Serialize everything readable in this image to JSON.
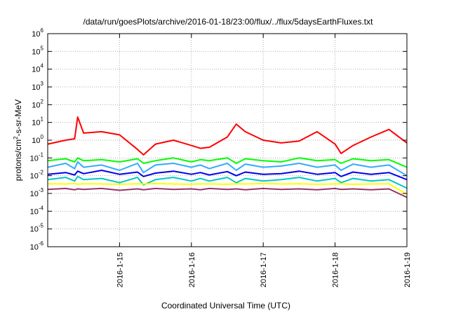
{
  "chart_data": {
    "type": "line",
    "title": "/data/run/goesPlots/archive/2016-01-18/23:00/flux/../flux/5daysEarthFluxes.txt",
    "xlabel": "Coordinated Universal Time (UTC)",
    "ylabel": {
      "prefix": "protons/cm",
      "sup": "2",
      "suffix": "-s-sr-MeV"
    },
    "yscale": "log",
    "ylim": [
      1e-06,
      1000000.0
    ],
    "xlim": [
      "2016-01-14 00:00",
      "2016-01-19 00:00"
    ],
    "y_tick_labels": [
      {
        "base": "10",
        "exp": "-6"
      },
      {
        "base": "10",
        "exp": "-5"
      },
      {
        "base": "10",
        "exp": "-4"
      },
      {
        "base": "10",
        "exp": "-3"
      },
      {
        "base": "10",
        "exp": "-2"
      },
      {
        "base": "10",
        "exp": "-1"
      },
      {
        "base": "10",
        "exp": "0"
      },
      {
        "base": "10",
        "exp": "1"
      },
      {
        "base": "10",
        "exp": "2"
      },
      {
        "base": "10",
        "exp": "3"
      },
      {
        "base": "10",
        "exp": "4"
      },
      {
        "base": "10",
        "exp": "5"
      },
      {
        "base": "10",
        "exp": "6"
      }
    ],
    "x_tick_labels": [
      "2016-1-15",
      "2016-1-16",
      "2016-1-17",
      "2016-1-18",
      "2016-1-19"
    ],
    "x_tick_dates": [
      "2016-01-15",
      "2016-01-16",
      "2016-01-17",
      "2016-01-18",
      "2016-01-19"
    ],
    "grid": true,
    "x": [
      "2016-01-14 00:00",
      "2016-01-14 06:00",
      "2016-01-14 09:00",
      "2016-01-14 10:00",
      "2016-01-14 12:00",
      "2016-01-14 18:00",
      "2016-01-15 00:00",
      "2016-01-15 06:00",
      "2016-01-15 08:00",
      "2016-01-15 12:00",
      "2016-01-15 18:00",
      "2016-01-16 00:00",
      "2016-01-16 03:00",
      "2016-01-16 06:00",
      "2016-01-16 12:00",
      "2016-01-16 15:00",
      "2016-01-16 18:00",
      "2016-01-17 00:00",
      "2016-01-17 06:00",
      "2016-01-17 12:00",
      "2016-01-17 18:00",
      "2016-01-18 00:00",
      "2016-01-18 02:00",
      "2016-01-18 06:00",
      "2016-01-18 12:00",
      "2016-01-18 18:00",
      "2016-01-19 00:00"
    ],
    "series": [
      {
        "color": "#ff0000",
        "values": [
          0.6,
          1.0,
          1.2,
          20,
          2.5,
          3.0,
          2.0,
          0.3,
          0.15,
          0.6,
          1.0,
          0.5,
          0.35,
          0.4,
          1.5,
          8.0,
          3.0,
          1.0,
          0.7,
          0.9,
          3.0,
          0.6,
          0.18,
          0.5,
          1.5,
          4.0,
          0.7
        ]
      },
      {
        "color": "#00ff00",
        "values": [
          0.07,
          0.09,
          0.06,
          0.1,
          0.07,
          0.08,
          0.06,
          0.09,
          0.05,
          0.07,
          0.1,
          0.06,
          0.08,
          0.07,
          0.1,
          0.05,
          0.09,
          0.07,
          0.06,
          0.1,
          0.07,
          0.08,
          0.05,
          0.09,
          0.07,
          0.08,
          0.03
        ]
      },
      {
        "color": "#33aaff",
        "values": [
          0.03,
          0.05,
          0.025,
          0.06,
          0.03,
          0.04,
          0.02,
          0.05,
          0.015,
          0.04,
          0.05,
          0.03,
          0.04,
          0.025,
          0.05,
          0.02,
          0.045,
          0.03,
          0.035,
          0.05,
          0.03,
          0.04,
          0.02,
          0.045,
          0.03,
          0.04,
          0.01
        ]
      },
      {
        "color": "#0000ee",
        "values": [
          0.012,
          0.015,
          0.011,
          0.018,
          0.013,
          0.02,
          0.012,
          0.016,
          0.009,
          0.014,
          0.018,
          0.012,
          0.015,
          0.011,
          0.017,
          0.01,
          0.016,
          0.012,
          0.013,
          0.018,
          0.012,
          0.015,
          0.009,
          0.016,
          0.012,
          0.015,
          0.006
        ]
      },
      {
        "color": "#00c8c8",
        "values": [
          0.006,
          0.008,
          0.005,
          0.009,
          0.006,
          0.007,
          0.004,
          0.008,
          0.003,
          0.006,
          0.008,
          0.005,
          0.007,
          0.005,
          0.008,
          0.004,
          0.007,
          0.005,
          0.006,
          0.008,
          0.005,
          0.007,
          0.004,
          0.007,
          0.005,
          0.006,
          0.002
        ]
      },
      {
        "color": "#ffff00",
        "values": [
          0.0035,
          0.0034,
          0.0036,
          0.0033,
          0.0035,
          0.0034,
          0.0033,
          0.0035,
          0.0034,
          0.0036,
          0.0034,
          0.0033,
          0.0035,
          0.0034,
          0.0033,
          0.0035,
          0.0034,
          0.0036,
          0.0034,
          0.0035,
          0.0033,
          0.0034,
          0.0035,
          0.0033,
          0.0034,
          0.0035,
          0.0009
        ]
      },
      {
        "color": "#993366",
        "values": [
          0.0017,
          0.0019,
          0.0016,
          0.0018,
          0.0017,
          0.0019,
          0.0015,
          0.0018,
          0.0016,
          0.0019,
          0.0017,
          0.0018,
          0.0016,
          0.0019,
          0.0017,
          0.0018,
          0.0016,
          0.0019,
          0.0017,
          0.0018,
          0.0016,
          0.0019,
          0.0017,
          0.0018,
          0.0016,
          0.0018,
          0.0006
        ]
      }
    ]
  }
}
